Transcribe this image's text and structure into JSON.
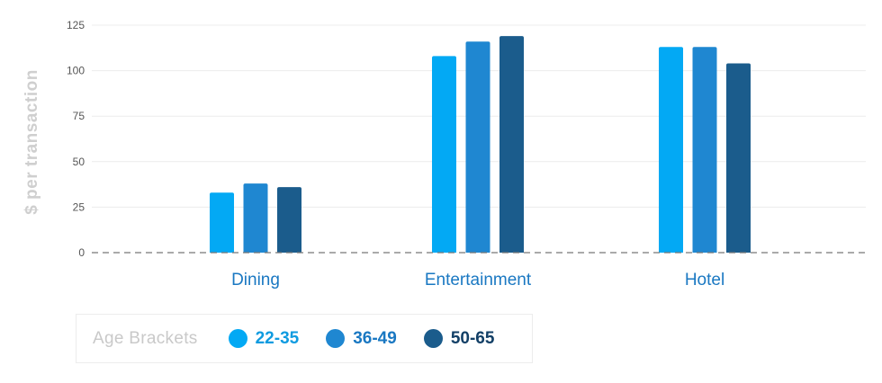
{
  "chart_data": {
    "type": "bar",
    "categories": [
      "Dining",
      "Entertainment",
      "Hotel"
    ],
    "series": [
      {
        "name": "22-35",
        "color": "#03a9f4",
        "values": [
          33,
          108,
          113
        ]
      },
      {
        "name": "36-49",
        "color": "#1f87d1",
        "values": [
          38,
          116,
          113
        ]
      },
      {
        "name": "50-65",
        "color": "#1b5c8c",
        "values": [
          36,
          119,
          104
        ]
      }
    ],
    "ylabel": "$ per transaction",
    "ylim": [
      0,
      125
    ],
    "yticks": [
      "0",
      "25",
      "50",
      "75",
      "100",
      "125"
    ],
    "grid": true,
    "legend": {
      "title": "Age Brackets",
      "placement": "bottom-left",
      "label_colors": [
        "#0f9be0",
        "#1a78c2",
        "#123f66"
      ]
    }
  }
}
